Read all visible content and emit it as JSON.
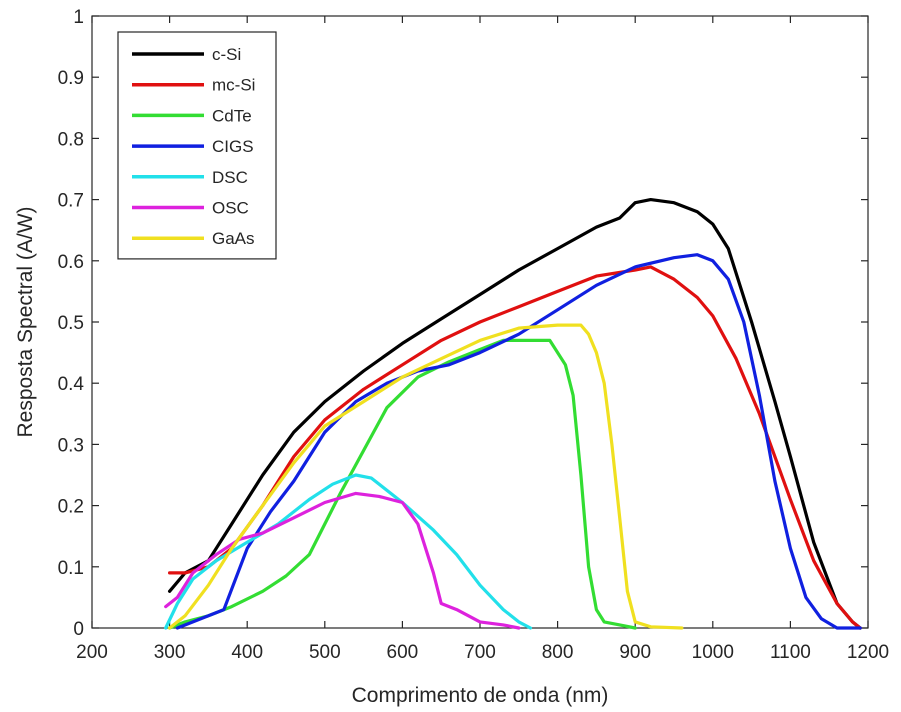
{
  "chart_data": {
    "type": "line",
    "xlabel": "Comprimento de onda (nm)",
    "ylabel": "Resposta Spectral (A/W)",
    "xlim": [
      200,
      1200
    ],
    "ylim": [
      0,
      1
    ],
    "xticks": [
      200,
      300,
      400,
      500,
      600,
      700,
      800,
      900,
      1000,
      1100,
      1200
    ],
    "yticks": [
      0,
      0.1,
      0.2,
      0.3,
      0.4,
      0.5,
      0.6,
      0.7,
      0.8,
      0.9,
      1
    ],
    "ytick_labels": [
      "0",
      "0.1",
      "0.2",
      "0.3",
      "0.4",
      "0.5",
      "0.6",
      "0.7",
      "0.8",
      "0.9",
      "1"
    ],
    "grid": false,
    "legend_position": "top-left",
    "series": [
      {
        "name": "c-Si",
        "color": "#000000",
        "x": [
          300,
          320,
          350,
          380,
          420,
          460,
          500,
          550,
          600,
          650,
          700,
          750,
          800,
          850,
          880,
          900,
          920,
          950,
          980,
          1000,
          1020,
          1050,
          1080,
          1100,
          1130,
          1160,
          1180,
          1190
        ],
        "y": [
          0.06,
          0.09,
          0.11,
          0.17,
          0.25,
          0.32,
          0.37,
          0.42,
          0.465,
          0.505,
          0.545,
          0.585,
          0.62,
          0.655,
          0.67,
          0.695,
          0.7,
          0.695,
          0.68,
          0.66,
          0.62,
          0.5,
          0.37,
          0.28,
          0.14,
          0.04,
          0.01,
          0.0
        ]
      },
      {
        "name": "mc-Si",
        "color": "#e01010",
        "x": [
          300,
          320,
          350,
          380,
          420,
          460,
          500,
          550,
          600,
          650,
          700,
          750,
          800,
          850,
          900,
          920,
          950,
          980,
          1000,
          1030,
          1060,
          1100,
          1130,
          1160,
          1180,
          1190
        ],
        "y": [
          0.09,
          0.09,
          0.1,
          0.13,
          0.2,
          0.28,
          0.34,
          0.39,
          0.43,
          0.47,
          0.5,
          0.525,
          0.55,
          0.575,
          0.585,
          0.59,
          0.57,
          0.54,
          0.51,
          0.44,
          0.35,
          0.21,
          0.11,
          0.04,
          0.01,
          0.0
        ]
      },
      {
        "name": "CdTe",
        "color": "#33dd33",
        "x": [
          300,
          320,
          350,
          380,
          420,
          450,
          480,
          500,
          520,
          550,
          580,
          620,
          660,
          700,
          730,
          760,
          790,
          810,
          820,
          830,
          840,
          850,
          860,
          880,
          900
        ],
        "y": [
          0.0,
          0.01,
          0.02,
          0.035,
          0.06,
          0.085,
          0.12,
          0.17,
          0.22,
          0.29,
          0.36,
          0.41,
          0.435,
          0.455,
          0.47,
          0.47,
          0.47,
          0.43,
          0.38,
          0.25,
          0.1,
          0.03,
          0.01,
          0.005,
          0.0
        ]
      },
      {
        "name": "CIGS",
        "color": "#1020e0",
        "x": [
          310,
          330,
          350,
          370,
          400,
          430,
          460,
          480,
          500,
          540,
          580,
          620,
          660,
          700,
          750,
          800,
          850,
          900,
          950,
          980,
          1000,
          1020,
          1040,
          1060,
          1080,
          1100,
          1120,
          1140,
          1160,
          1180,
          1190
        ],
        "y": [
          0.0,
          0.01,
          0.02,
          0.03,
          0.13,
          0.19,
          0.24,
          0.28,
          0.32,
          0.37,
          0.4,
          0.42,
          0.43,
          0.45,
          0.48,
          0.52,
          0.56,
          0.59,
          0.605,
          0.61,
          0.6,
          0.57,
          0.5,
          0.38,
          0.24,
          0.13,
          0.05,
          0.015,
          0.0,
          0.0,
          0.0
        ]
      },
      {
        "name": "DSC",
        "color": "#22e0ea",
        "x": [
          295,
          310,
          330,
          360,
          400,
          440,
          480,
          510,
          540,
          560,
          600,
          640,
          670,
          700,
          730,
          750,
          765
        ],
        "y": [
          0.0,
          0.04,
          0.08,
          0.11,
          0.14,
          0.17,
          0.21,
          0.235,
          0.25,
          0.245,
          0.205,
          0.16,
          0.12,
          0.07,
          0.03,
          0.01,
          0.0
        ]
      },
      {
        "name": "OSC",
        "color": "#dd22dd",
        "x": [
          295,
          310,
          330,
          360,
          390,
          420,
          460,
          500,
          540,
          570,
          600,
          620,
          640,
          650,
          670,
          700,
          730,
          750
        ],
        "y": [
          0.035,
          0.05,
          0.09,
          0.12,
          0.145,
          0.155,
          0.18,
          0.205,
          0.22,
          0.215,
          0.205,
          0.17,
          0.09,
          0.04,
          0.03,
          0.01,
          0.005,
          0.0
        ]
      },
      {
        "name": "GaAs",
        "color": "#f0e020",
        "x": [
          300,
          320,
          350,
          380,
          420,
          460,
          500,
          550,
          600,
          650,
          700,
          750,
          800,
          830,
          840,
          850,
          860,
          870,
          880,
          890,
          900,
          920,
          960
        ],
        "y": [
          0.0,
          0.02,
          0.07,
          0.13,
          0.2,
          0.27,
          0.33,
          0.37,
          0.41,
          0.44,
          0.47,
          0.49,
          0.495,
          0.495,
          0.48,
          0.45,
          0.4,
          0.3,
          0.18,
          0.06,
          0.01,
          0.002,
          0.0
        ]
      }
    ]
  }
}
